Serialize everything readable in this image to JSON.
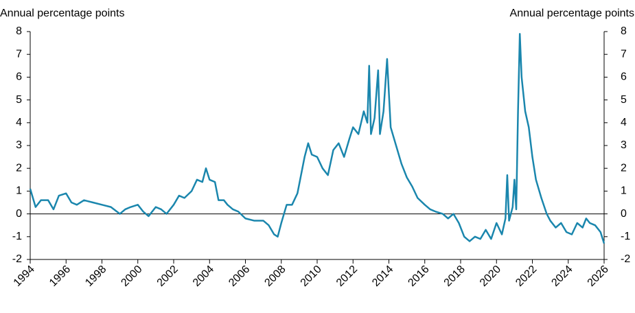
{
  "chart_data": {
    "type": "line",
    "y_label": "Annual percentage points",
    "y2_label": "Annual percentage points",
    "x": [
      1994.0,
      1994.3,
      1994.6,
      1995.0,
      1995.3,
      1995.6,
      1996.0,
      1996.3,
      1996.6,
      1997.0,
      1997.5,
      1998.0,
      1998.5,
      1999.0,
      1999.3,
      1999.6,
      2000.0,
      2000.3,
      2000.6,
      2001.0,
      2001.3,
      2001.6,
      2002.0,
      2002.3,
      2002.6,
      2003.0,
      2003.3,
      2003.6,
      2003.8,
      2004.0,
      2004.3,
      2004.5,
      2004.8,
      2005.0,
      2005.3,
      2005.6,
      2006.0,
      2006.5,
      2007.0,
      2007.3,
      2007.6,
      2007.8,
      2008.0,
      2008.3,
      2008.6,
      2008.9,
      2009.1,
      2009.3,
      2009.5,
      2009.7,
      2010.0,
      2010.3,
      2010.6,
      2010.9,
      2011.2,
      2011.5,
      2011.8,
      2012.0,
      2012.3,
      2012.6,
      2012.8,
      2012.9,
      2013.0,
      2013.2,
      2013.4,
      2013.5,
      2013.7,
      2013.9,
      2014.1,
      2014.4,
      2014.7,
      2015.0,
      2015.3,
      2015.6,
      2016.0,
      2016.3,
      2016.6,
      2017.0,
      2017.3,
      2017.6,
      2017.9,
      2018.2,
      2018.5,
      2018.8,
      2019.1,
      2019.4,
      2019.7,
      2020.0,
      2020.3,
      2020.5,
      2020.6,
      2020.7,
      2020.9,
      2021.0,
      2021.1,
      2021.2,
      2021.3,
      2021.4,
      2021.6,
      2021.8,
      2022.0,
      2022.2,
      2022.5,
      2022.8,
      2023.0,
      2023.3,
      2023.6,
      2023.9,
      2024.2,
      2024.5,
      2024.8,
      2025.0,
      2025.2,
      2025.5,
      2025.8,
      2026.0
    ],
    "series": [
      {
        "color": "#1a86ad",
        "values": [
          1.1,
          0.3,
          0.6,
          0.6,
          0.2,
          0.8,
          0.9,
          0.5,
          0.4,
          0.6,
          0.5,
          0.4,
          0.3,
          0.0,
          0.2,
          0.3,
          0.4,
          0.1,
          -0.1,
          0.3,
          0.2,
          0.0,
          0.4,
          0.8,
          0.7,
          1.0,
          1.5,
          1.4,
          2.0,
          1.5,
          1.4,
          0.6,
          0.6,
          0.4,
          0.2,
          0.1,
          -0.2,
          -0.3,
          -0.3,
          -0.5,
          -0.9,
          -1.0,
          -0.4,
          0.4,
          0.4,
          0.9,
          1.7,
          2.5,
          3.1,
          2.6,
          2.5,
          2.0,
          1.7,
          2.8,
          3.1,
          2.5,
          3.3,
          3.8,
          3.5,
          4.5,
          4.0,
          6.5,
          3.5,
          4.2,
          6.3,
          3.5,
          4.5,
          6.8,
          3.8,
          3.0,
          2.2,
          1.6,
          1.2,
          0.7,
          0.4,
          0.2,
          0.1,
          0.0,
          -0.2,
          0.0,
          -0.4,
          -1.0,
          -1.2,
          -1.0,
          -1.1,
          -0.7,
          -1.1,
          -0.4,
          -0.9,
          -0.2,
          1.7,
          -0.3,
          0.3,
          1.5,
          0.2,
          4.5,
          7.9,
          6.0,
          4.5,
          3.8,
          2.5,
          1.5,
          0.7,
          0.0,
          -0.3,
          -0.6,
          -0.4,
          -0.8,
          -0.9,
          -0.4,
          -0.6,
          -0.2,
          -0.4,
          -0.5,
          -0.8,
          -1.3
        ]
      }
    ],
    "xlim": [
      1994,
      2026
    ],
    "xticks": [
      1994,
      1996,
      1998,
      2000,
      2002,
      2004,
      2006,
      2008,
      2010,
      2012,
      2014,
      2016,
      2018,
      2020,
      2022,
      2024,
      2026
    ],
    "ylim": [
      -2,
      8
    ],
    "yticks": [
      -2,
      -1,
      0,
      1,
      2,
      3,
      4,
      5,
      6,
      7,
      8
    ],
    "y2lim": [
      -2,
      8
    ],
    "y2ticks": [
      -2,
      -1,
      0,
      1,
      2,
      3,
      4,
      5,
      6,
      7,
      8
    ],
    "grid": false
  }
}
